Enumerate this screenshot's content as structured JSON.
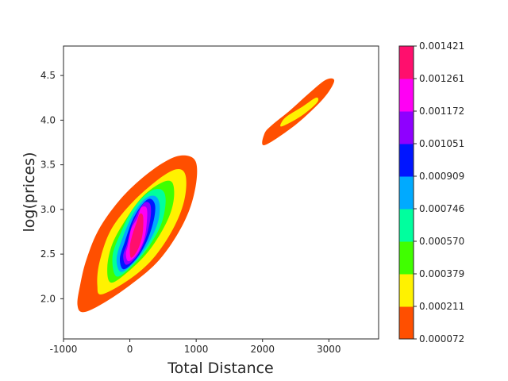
{
  "chart_data": {
    "type": "contour",
    "xlabel": "Total Distance",
    "ylabel": "log(prices)",
    "xlim": [
      -1000,
      3750
    ],
    "ylim": [
      1.55,
      4.83
    ],
    "x_ticks": [
      {
        "value": -1000,
        "label": "-1000"
      },
      {
        "value": 0,
        "label": "0"
      },
      {
        "value": 1000,
        "label": "1000"
      },
      {
        "value": 2000,
        "label": "2000"
      },
      {
        "value": 3000,
        "label": "3000"
      }
    ],
    "y_ticks": [
      {
        "value": 2.0,
        "label": "2.0"
      },
      {
        "value": 2.5,
        "label": "2.5"
      },
      {
        "value": 3.0,
        "label": "3.0"
      },
      {
        "value": 3.5,
        "label": "3.5"
      },
      {
        "value": 4.0,
        "label": "4.0"
      },
      {
        "value": 4.5,
        "label": "4.5"
      }
    ],
    "grid": false,
    "colorbar": {
      "position": "right",
      "levels": [
        "0.000072",
        "0.000211",
        "0.000379",
        "0.000570",
        "0.000746",
        "0.000909",
        "0.001051",
        "0.001172",
        "0.001261",
        "0.001421"
      ],
      "colors": [
        "#ff4f00",
        "#fff200",
        "#40ff00",
        "#00ff9e",
        "#00aaff",
        "#0015ff",
        "#8f00ff",
        "#ff00f4",
        "#ff0f6d"
      ]
    },
    "regions": [
      {
        "name": "main",
        "levels": [
          [
            [
              -700,
              1.85
            ],
            [
              -400,
              1.95
            ],
            [
              0,
              2.15
            ],
            [
              400,
              2.4
            ],
            [
              700,
              2.7
            ],
            [
              900,
              3.0
            ],
            [
              1000,
              3.3
            ],
            [
              1000,
              3.52
            ],
            [
              880,
              3.6
            ],
            [
              650,
              3.58
            ],
            [
              300,
              3.42
            ],
            [
              -100,
              3.15
            ],
            [
              -450,
              2.8
            ],
            [
              -650,
              2.45
            ],
            [
              -750,
              2.15
            ],
            [
              -790,
              1.93
            ]
          ],
          [
            [
              -420,
              2.05
            ],
            [
              0,
              2.22
            ],
            [
              350,
              2.45
            ],
            [
              650,
              2.78
            ],
            [
              820,
              3.1
            ],
            [
              840,
              3.38
            ],
            [
              700,
              3.45
            ],
            [
              400,
              3.32
            ],
            [
              0,
              3.05
            ],
            [
              -300,
              2.75
            ],
            [
              -460,
              2.4
            ],
            [
              -490,
              2.15
            ]
          ],
          [
            [
              -280,
              2.18
            ],
            [
              0,
              2.32
            ],
            [
              300,
              2.55
            ],
            [
              550,
              2.85
            ],
            [
              660,
              3.1
            ],
            [
              640,
              3.3
            ],
            [
              480,
              3.3
            ],
            [
              200,
              3.15
            ],
            [
              -50,
              2.9
            ],
            [
              -260,
              2.62
            ],
            [
              -340,
              2.35
            ]
          ],
          [
            [
              -200,
              2.25
            ],
            [
              50,
              2.38
            ],
            [
              300,
              2.6
            ],
            [
              480,
              2.85
            ],
            [
              540,
              3.1
            ],
            [
              480,
              3.22
            ],
            [
              300,
              3.2
            ],
            [
              60,
              3.02
            ],
            [
              -130,
              2.75
            ],
            [
              -260,
              2.48
            ]
          ],
          [
            [
              -130,
              2.3
            ],
            [
              80,
              2.42
            ],
            [
              280,
              2.62
            ],
            [
              420,
              2.85
            ],
            [
              450,
              3.05
            ],
            [
              380,
              3.15
            ],
            [
              230,
              3.12
            ],
            [
              50,
              2.95
            ],
            [
              -100,
              2.7
            ],
            [
              -200,
              2.45
            ]
          ],
          [
            [
              -90,
              2.33
            ],
            [
              100,
              2.45
            ],
            [
              260,
              2.65
            ],
            [
              360,
              2.88
            ],
            [
              380,
              3.05
            ],
            [
              300,
              3.12
            ],
            [
              180,
              3.05
            ],
            [
              40,
              2.88
            ],
            [
              -70,
              2.65
            ],
            [
              -150,
              2.45
            ]
          ],
          [
            [
              -50,
              2.38
            ],
            [
              110,
              2.48
            ],
            [
              240,
              2.68
            ],
            [
              310,
              2.9
            ],
            [
              310,
              3.05
            ],
            [
              230,
              3.08
            ],
            [
              130,
              2.98
            ],
            [
              30,
              2.82
            ],
            [
              -40,
              2.62
            ],
            [
              -100,
              2.48
            ]
          ],
          [
            [
              -20,
              2.42
            ],
            [
              110,
              2.5
            ],
            [
              220,
              2.68
            ],
            [
              260,
              2.9
            ],
            [
              250,
              3.02
            ],
            [
              170,
              3.02
            ],
            [
              110,
              2.9
            ],
            [
              20,
              2.78
            ],
            [
              -30,
              2.6
            ],
            [
              -60,
              2.5
            ]
          ],
          [
            [
              20,
              2.46
            ],
            [
              120,
              2.55
            ],
            [
              190,
              2.72
            ],
            [
              200,
              2.92
            ],
            [
              150,
              2.95
            ],
            [
              100,
              2.85
            ],
            [
              40,
              2.72
            ],
            [
              0,
              2.58
            ]
          ]
        ]
      },
      {
        "name": "secondary",
        "levels": [
          [
            [
              2030,
              3.72
            ],
            [
              2450,
              3.92
            ],
            [
              2800,
              4.15
            ],
            [
              3000,
              4.32
            ],
            [
              3080,
              4.45
            ],
            [
              2950,
              4.45
            ],
            [
              2700,
              4.3
            ],
            [
              2400,
              4.1
            ],
            [
              2150,
              3.95
            ],
            [
              2030,
              3.85
            ]
          ],
          [
            [
              2290,
              3.93
            ],
            [
              2550,
              4.03
            ],
            [
              2760,
              4.15
            ],
            [
              2840,
              4.22
            ],
            [
              2800,
              4.25
            ],
            [
              2600,
              4.15
            ],
            [
              2380,
              4.05
            ],
            [
              2290,
              3.98
            ]
          ]
        ]
      }
    ]
  }
}
